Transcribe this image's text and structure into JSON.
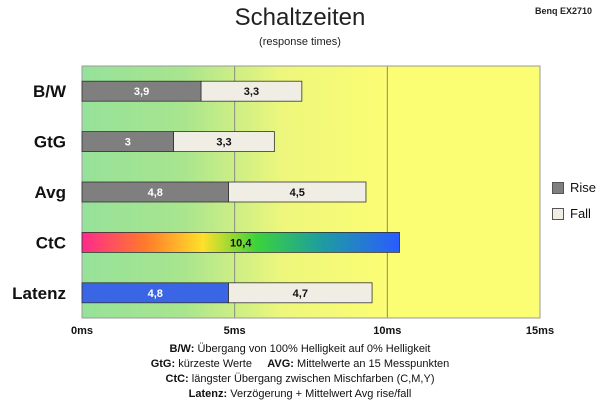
{
  "header": {
    "title": "Schaltzeiten",
    "subtitle": "(response times)",
    "brand": "Benq EX2710"
  },
  "chart_data": {
    "type": "bar",
    "orientation": "horizontal",
    "stacked": true,
    "title": "Schaltzeiten",
    "subtitle": "(response times)",
    "xlim": [
      0,
      15
    ],
    "x_ticks": [
      "0ms",
      "5ms",
      "10ms",
      "15ms"
    ],
    "categories": [
      "B/W",
      "GtG",
      "Avg",
      "CtC",
      "Latenz"
    ],
    "series": [
      {
        "name": "Rise",
        "color": "#7f7f7f",
        "values": [
          3.9,
          3,
          4.8,
          null,
          null
        ],
        "labels": [
          "3,9",
          "3",
          "4,8",
          "",
          ""
        ]
      },
      {
        "name": "Fall",
        "color": "#efede4",
        "values": [
          3.3,
          3.3,
          4.5,
          null,
          null
        ],
        "labels": [
          "3,3",
          "3,3",
          "4,5",
          "",
          ""
        ]
      }
    ],
    "single_bars": [
      {
        "category": "CtC",
        "value": 10.4,
        "label": "10,4",
        "style": "rainbow"
      },
      {
        "category": "Latenz",
        "segments": [
          {
            "value": 4.8,
            "label": "4,8",
            "color": "#3a66e6"
          },
          {
            "value": 4.7,
            "label": "4,7",
            "color": "#efede4"
          }
        ]
      }
    ],
    "background_zones": "gradient green to yellow",
    "legend": {
      "placement": "right",
      "entries": [
        "Rise",
        "Fall"
      ]
    },
    "grid": true
  },
  "notes": [
    {
      "key": "B/W:",
      "text": "Übergang von 100% Helligkeit auf 0% Helligkeit"
    },
    {
      "key": "GtG:",
      "text": "kürzeste Werte",
      "key2": "AVG:",
      "text2": "Mittelwerte an 15 Messpunkten"
    },
    {
      "key": "CtC:",
      "text": "längster Übergang zwischen Mischfarben (C,M,Y)"
    },
    {
      "key": "Latenz:",
      "text": "Verzögerung + Mittelwert Avg rise/fall"
    }
  ]
}
